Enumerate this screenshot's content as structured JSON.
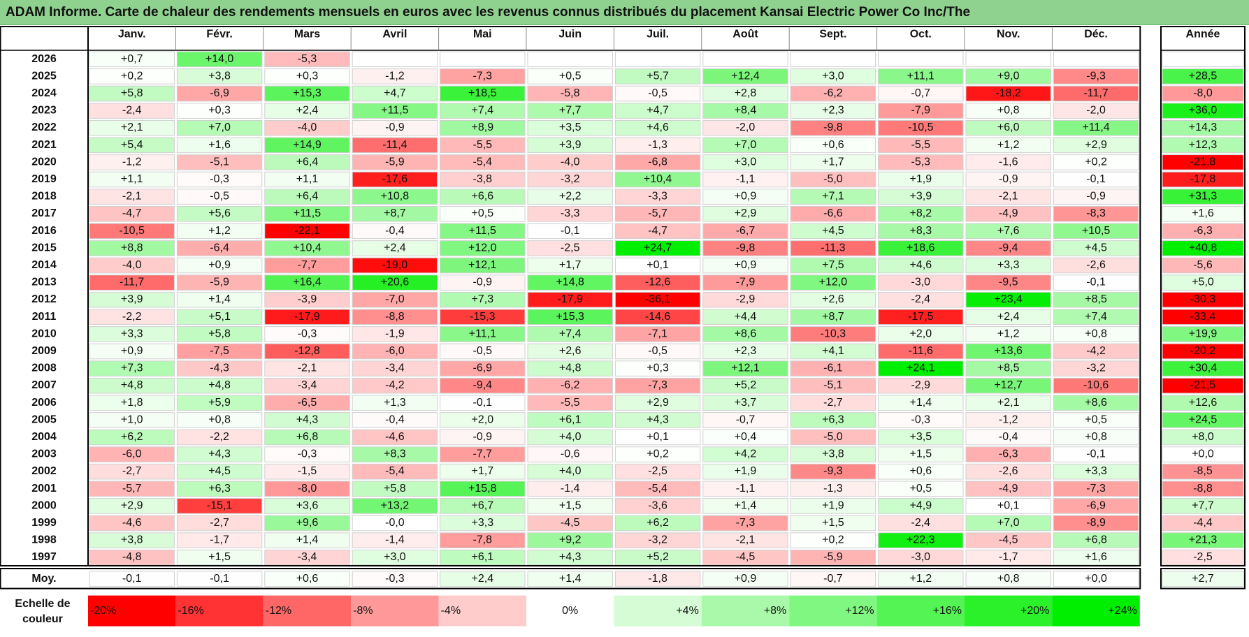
{
  "title": "ADAM Informe. Carte de chaleur des rendements mensuels en euros avec les revenus connus distribués du placement Kansai Electric Power Co Inc/The",
  "chart_data": {
    "type": "heatmap",
    "title": "ADAM Informe. Carte de chaleur des rendements mensuels en euros avec les revenus connus distribués du placement Kansai Electric Power Co Inc/The",
    "months": [
      "Janv.",
      "Févr.",
      "Mars",
      "Avril",
      "Mai",
      "Juin",
      "Juil.",
      "Août",
      "Sept.",
      "Oct.",
      "Nov.",
      "Déc."
    ],
    "year_header": "Année",
    "avg_label": "Moy.",
    "rows": [
      {
        "year": "2026",
        "values": [
          "+0,7",
          "+14,0",
          "-5,3",
          "",
          "",
          "",
          "",
          "",
          "",
          "",
          "",
          ""
        ],
        "annual": ""
      },
      {
        "year": "2025",
        "values": [
          "+0,2",
          "+3,8",
          "+0,3",
          "-1,2",
          "-7,3",
          "+0,5",
          "+5,7",
          "+12,4",
          "+3,0",
          "+11,1",
          "+9,0",
          "-9,3"
        ],
        "annual": "+28,5"
      },
      {
        "year": "2024",
        "values": [
          "+5,8",
          "-6,9",
          "+15,3",
          "+4,7",
          "+18,5",
          "-5,8",
          "-0,5",
          "+2,8",
          "-6,2",
          "-0,7",
          "-18,2",
          "-11,7"
        ],
        "annual": "-8,0"
      },
      {
        "year": "2023",
        "values": [
          "-2,4",
          "+0,3",
          "+2,4",
          "+11,5",
          "+7,4",
          "+7,7",
          "+4,7",
          "+8,4",
          "+2,3",
          "-7,9",
          "+0,8",
          "-2,0"
        ],
        "annual": "+36,0"
      },
      {
        "year": "2022",
        "values": [
          "+2,1",
          "+7,0",
          "-4,0",
          "-0,9",
          "+8,9",
          "+3,5",
          "+4,6",
          "-2,0",
          "-9,8",
          "-10,5",
          "+6,0",
          "+11,4"
        ],
        "annual": "+14,3"
      },
      {
        "year": "2021",
        "values": [
          "+5,4",
          "+1,6",
          "+14,9",
          "-11,4",
          "-5,5",
          "+3,9",
          "-1,3",
          "+7,0",
          "+0,6",
          "-5,5",
          "+1,2",
          "+2,9"
        ],
        "annual": "+12,3"
      },
      {
        "year": "2020",
        "values": [
          "-1,2",
          "-5,1",
          "+6,4",
          "-5,9",
          "-5,4",
          "-4,0",
          "-6,8",
          "+3,0",
          "+1,7",
          "-5,3",
          "-1,6",
          "+0,2"
        ],
        "annual": "-21,8"
      },
      {
        "year": "2019",
        "values": [
          "+1,1",
          "-0,3",
          "+1,1",
          "-17,6",
          "-3,8",
          "-3,2",
          "+10,4",
          "-1,1",
          "-5,0",
          "+1,9",
          "-0,9",
          "-0,1"
        ],
        "annual": "-17,8"
      },
      {
        "year": "2018",
        "values": [
          "-2,1",
          "-0,5",
          "+6,4",
          "+10,8",
          "+6,6",
          "+2,2",
          "-3,3",
          "+0,9",
          "+7,1",
          "+3,9",
          "-2,1",
          "-0,9"
        ],
        "annual": "+31,3"
      },
      {
        "year": "2017",
        "values": [
          "-4,7",
          "+5,6",
          "+11,5",
          "+8,7",
          "+0,5",
          "-3,3",
          "-5,7",
          "+2,9",
          "-6,6",
          "+8,2",
          "-4,9",
          "-8,3"
        ],
        "annual": "+1,6"
      },
      {
        "year": "2016",
        "values": [
          "-10,5",
          "+1,2",
          "-22,1",
          "-0,4",
          "+11,5",
          "-0,1",
          "-4,7",
          "-6,7",
          "+4,5",
          "+8,3",
          "+7,6",
          "+10,5"
        ],
        "annual": "-6,3"
      },
      {
        "year": "2015",
        "values": [
          "+8,8",
          "-6,4",
          "+10,4",
          "+2,4",
          "+12,0",
          "-2,5",
          "+24,7",
          "-9,8",
          "-11,3",
          "+18,6",
          "-9,4",
          "+4,5"
        ],
        "annual": "+40,8"
      },
      {
        "year": "2014",
        "values": [
          "-4,0",
          "+0,9",
          "-7,7",
          "-19,0",
          "+12,1",
          "+1,7",
          "+0,1",
          "+0,9",
          "+7,5",
          "+4,6",
          "+3,3",
          "-2,6"
        ],
        "annual": "-5,6"
      },
      {
        "year": "2013",
        "values": [
          "-11,7",
          "-5,9",
          "+16,4",
          "+20,6",
          "-0,9",
          "+14,8",
          "-12,6",
          "-7,9",
          "+12,0",
          "-3,0",
          "-9,5",
          "-0,1"
        ],
        "annual": "+5,0"
      },
      {
        "year": "2012",
        "values": [
          "+3,9",
          "+1,4",
          "-3,9",
          "-7,0",
          "+7,3",
          "-17,9",
          "-36,1",
          "-2,9",
          "+2,6",
          "-2,4",
          "+23,4",
          "+8,5"
        ],
        "annual": "-30,3"
      },
      {
        "year": "2011",
        "values": [
          "-2,2",
          "+5,1",
          "-17,9",
          "-8,8",
          "-15,3",
          "+15,3",
          "-14,6",
          "+4,4",
          "+8,7",
          "-17,5",
          "+2,4",
          "+7,4"
        ],
        "annual": "-33,4"
      },
      {
        "year": "2010",
        "values": [
          "+3,3",
          "+5,8",
          "-0,3",
          "-1,9",
          "+11,1",
          "+7,4",
          "-7,1",
          "+8,6",
          "-10,3",
          "+2,0",
          "+1,2",
          "+0,8"
        ],
        "annual": "+19,9"
      },
      {
        "year": "2009",
        "values": [
          "+0,9",
          "-7,5",
          "-12,8",
          "-6,0",
          "-0,5",
          "+2,6",
          "-0,5",
          "+2,3",
          "+4,1",
          "-11,6",
          "+13,6",
          "-4,2"
        ],
        "annual": "-20,2"
      },
      {
        "year": "2008",
        "values": [
          "+7,3",
          "-4,3",
          "-2,1",
          "-3,4",
          "-6,9",
          "+4,8",
          "+0,3",
          "+12,1",
          "-6,1",
          "+24,1",
          "+8,5",
          "-3,2"
        ],
        "annual": "+30,4"
      },
      {
        "year": "2007",
        "values": [
          "+4,8",
          "+4,8",
          "-3,4",
          "-4,2",
          "-9,4",
          "-6,2",
          "-7,3",
          "+5,2",
          "-5,1",
          "-2,9",
          "+12,7",
          "-10,6"
        ],
        "annual": "-21,5"
      },
      {
        "year": "2006",
        "values": [
          "+1,8",
          "+5,9",
          "-6,5",
          "+1,3",
          "-0,1",
          "-5,5",
          "+2,9",
          "+3,7",
          "-2,7",
          "+1,4",
          "+2,1",
          "+8,6"
        ],
        "annual": "+12,6"
      },
      {
        "year": "2005",
        "values": [
          "+1,0",
          "+0,8",
          "+4,3",
          "-0,4",
          "+2,0",
          "+6,1",
          "+4,3",
          "-0,7",
          "+6,3",
          "-0,3",
          "-1,2",
          "+0,5"
        ],
        "annual": "+24,5"
      },
      {
        "year": "2004",
        "values": [
          "+6,2",
          "-2,2",
          "+6,8",
          "-4,6",
          "-0,9",
          "+4,0",
          "+0,1",
          "+0,4",
          "-5,0",
          "+3,5",
          "-0,4",
          "+0,8"
        ],
        "annual": "+8,0"
      },
      {
        "year": "2003",
        "values": [
          "-6,0",
          "+4,3",
          "-0,3",
          "+8,3",
          "-7,7",
          "-0,6",
          "+0,2",
          "+4,2",
          "+3,8",
          "+1,5",
          "-6,3",
          "-0,1"
        ],
        "annual": "+0,0"
      },
      {
        "year": "2002",
        "values": [
          "-2,7",
          "+4,5",
          "-1,5",
          "-5,4",
          "+1,7",
          "+4,0",
          "-2,5",
          "+1,9",
          "-9,3",
          "+0,6",
          "-2,6",
          "+3,3"
        ],
        "annual": "-8,5"
      },
      {
        "year": "2001",
        "values": [
          "-5,7",
          "+6,3",
          "-8,0",
          "+5,8",
          "+15,8",
          "-1,4",
          "-5,4",
          "-1,1",
          "-1,3",
          "+0,5",
          "-4,9",
          "-7,3"
        ],
        "annual": "-8,8"
      },
      {
        "year": "2000",
        "values": [
          "+2,9",
          "-15,1",
          "+3,6",
          "+13,2",
          "+6,7",
          "+1,5",
          "-3,6",
          "+1,4",
          "+1,9",
          "+4,9",
          "+0,1",
          "-6,9"
        ],
        "annual": "+7,7"
      },
      {
        "year": "1999",
        "values": [
          "-4,6",
          "-2,7",
          "+9,6",
          "-0,0",
          "+3,3",
          "-4,5",
          "+6,2",
          "-7,3",
          "+1,5",
          "-2,4",
          "+7,0",
          "-8,9"
        ],
        "annual": "-4,4"
      },
      {
        "year": "1998",
        "values": [
          "+3,8",
          "-1,7",
          "+1,4",
          "-1,4",
          "-7,8",
          "+9,2",
          "-3,2",
          "-2,1",
          "+0,2",
          "+22,3",
          "-4,5",
          "+6,8"
        ],
        "annual": "+21,3"
      },
      {
        "year": "1997",
        "values": [
          "-4,8",
          "+1,5",
          "-3,4",
          "+3,0",
          "+6,1",
          "+4,3",
          "+5,2",
          "-4,5",
          "-5,9",
          "-3,0",
          "-1,7",
          "+1,6"
        ],
        "annual": "-2,5"
      }
    ],
    "average": {
      "values": [
        "-0,1",
        "-0,1",
        "+0,6",
        "-0,3",
        "+2,4",
        "+1,4",
        "-1,8",
        "+0,9",
        "-0,7",
        "+1,2",
        "+0,8",
        "+0,0"
      ],
      "annual": "+2,7"
    },
    "scale_label_line1": "Echelle de",
    "scale_label_line2": "couleur",
    "scale": [
      "-20%",
      "-16%",
      "-12%",
      "-8%",
      "-4%",
      "0%",
      "+4%",
      "+8%",
      "+12%",
      "+16%",
      "+20%",
      "+24%"
    ],
    "colors": {
      "negative_max": "#ff0000",
      "positive_max": "#00ee00",
      "neutral": "#ffffff",
      "title_bg": "#8fd18f"
    }
  }
}
